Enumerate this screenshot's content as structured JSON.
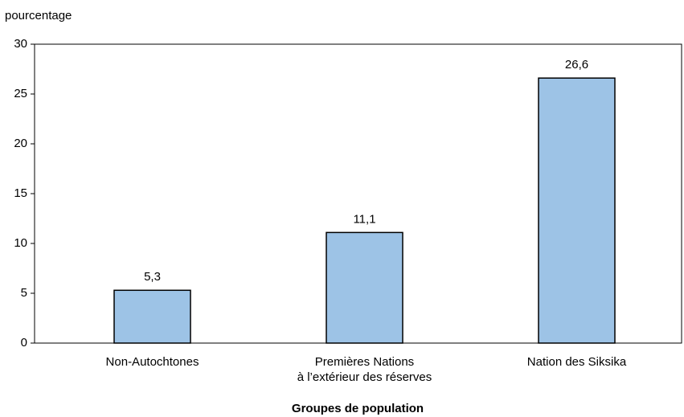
{
  "chart_data": {
    "type": "bar",
    "y_label": "pourcentage",
    "x_label": "Groupes de population",
    "categories": [
      "Non-Autochtones",
      "Premières Nations\nà l’extérieur des réserves",
      "Nation des Siksika"
    ],
    "values": [
      5.3,
      11.1,
      26.6
    ],
    "value_labels": [
      "5,3",
      "11,1",
      "26,6"
    ],
    "color": "#9dc3e6",
    "ylim": [
      0,
      30
    ],
    "yticks": [
      0,
      5,
      10,
      15,
      20,
      25,
      30
    ],
    "grid": false
  }
}
